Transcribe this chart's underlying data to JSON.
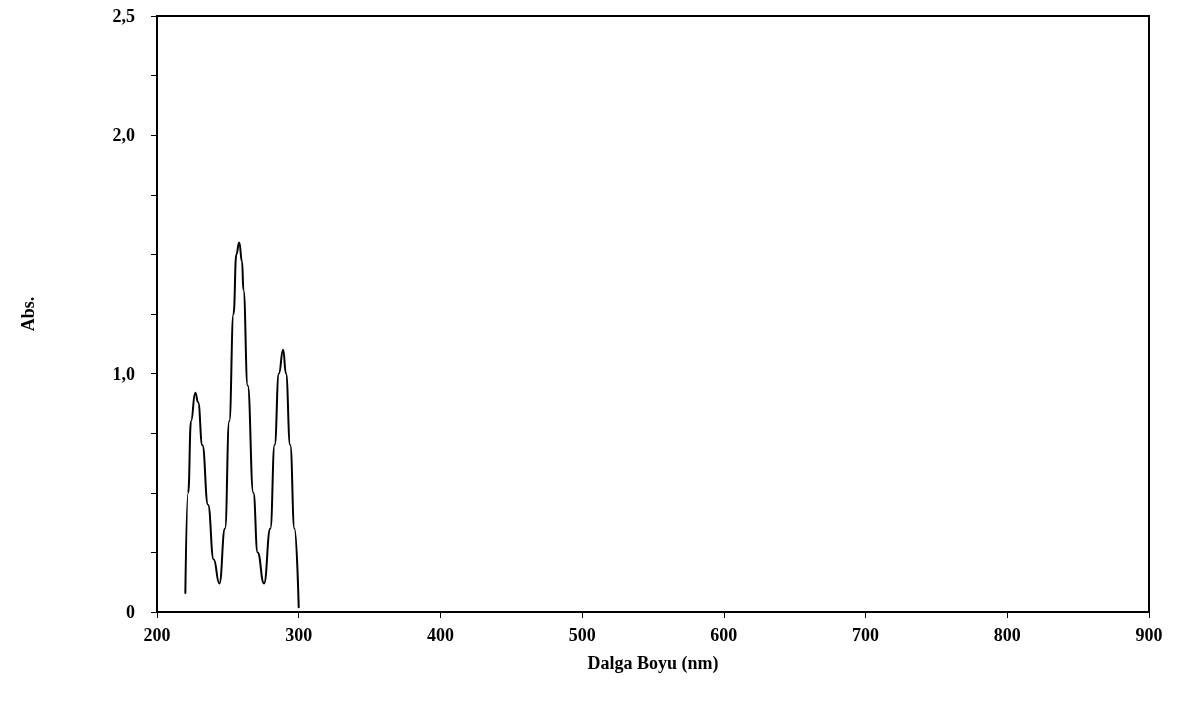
{
  "chart_data": {
    "type": "line",
    "xlabel": "Dalga Boyu (nm)",
    "ylabel": "Abs.",
    "x": [
      220,
      222,
      224,
      227,
      229,
      232,
      236,
      240,
      244,
      248,
      251,
      254,
      256,
      258,
      260,
      261,
      264,
      268,
      271,
      275.5,
      280,
      283,
      286,
      289,
      291,
      294,
      297,
      300
    ],
    "series": [
      {
        "color": "#000000",
        "values": [
          0.08,
          0.5,
          0.8,
          0.92,
          0.88,
          0.7,
          0.45,
          0.22,
          0.12,
          0.35,
          0.8,
          1.25,
          1.5,
          1.55,
          1.47,
          1.35,
          0.95,
          0.5,
          0.25,
          0.12,
          0.35,
          0.7,
          1.0,
          1.1,
          1.0,
          0.7,
          0.35,
          0.02
        ]
      }
    ],
    "xlim": [
      200,
      900
    ],
    "xticks": [
      200,
      300,
      400,
      500,
      600,
      700,
      800,
      900
    ],
    "ylim": [
      0,
      2.5
    ],
    "yticks": [
      {
        "value": 0,
        "label": "0"
      },
      {
        "value": 0.25,
        "label": null
      },
      {
        "value": 0.5,
        "label": null
      },
      {
        "value": 0.75,
        "label": null
      },
      {
        "value": 1,
        "label": "1,0"
      },
      {
        "value": 1.25,
        "label": null
      },
      {
        "value": 1.5,
        "label": null
      },
      {
        "value": 1.75,
        "label": null
      },
      {
        "value": 2,
        "label": "2,0"
      },
      {
        "value": 2.25,
        "label": null
      },
      {
        "value": 2.5,
        "label": "2,5"
      }
    ],
    "grid": false,
    "marker": "none",
    "line_style": "solid"
  }
}
